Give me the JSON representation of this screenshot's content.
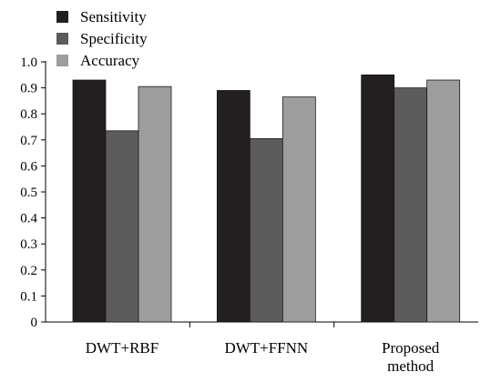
{
  "chart_data": {
    "type": "bar",
    "categories": [
      [
        "DWT+RBF"
      ],
      [
        "DWT+FFNN"
      ],
      [
        "Proposed",
        "method"
      ]
    ],
    "series": [
      {
        "name": "Sensitivity",
        "values": [
          0.93,
          0.89,
          0.95
        ],
        "color": "#231f20"
      },
      {
        "name": "Specificity",
        "values": [
          0.735,
          0.705,
          0.9
        ],
        "color": "#5c5c5c"
      },
      {
        "name": "Accuracy",
        "values": [
          0.905,
          0.865,
          0.93
        ],
        "color": "#9d9d9d"
      }
    ],
    "yticks": [
      "0",
      "0.1",
      "0.2",
      "0.3",
      "0.4",
      "0.5",
      "0.6",
      "0.7",
      "0.8",
      "0.9",
      "1.0"
    ],
    "ylim": [
      0,
      1.0
    ],
    "title": "",
    "xlabel": "",
    "ylabel": "",
    "grid": false,
    "legend_position": "top-left"
  }
}
